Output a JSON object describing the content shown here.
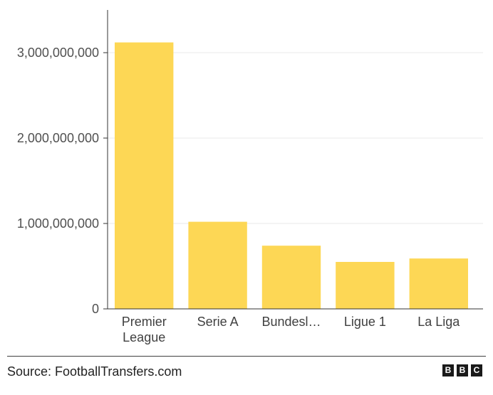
{
  "chart_data": {
    "type": "bar",
    "categories": [
      {
        "lines": [
          "Premier",
          "League"
        ]
      },
      {
        "lines": [
          "Serie A"
        ]
      },
      {
        "lines": [
          "Bundesl…"
        ]
      },
      {
        "lines": [
          "Ligue 1"
        ]
      },
      {
        "lines": [
          "La Liga"
        ]
      }
    ],
    "values": [
      3120000000,
      1020000000,
      740000000,
      550000000,
      590000000
    ],
    "ylim": [
      0,
      3500000000
    ],
    "yticks": [
      0,
      1000000000,
      2000000000,
      3000000000
    ],
    "ytick_labels": [
      "0",
      "1,000,000,000",
      "2,000,000,000",
      "3,000,000,000"
    ],
    "bar_color": "#fdd755",
    "grid": true,
    "title": "",
    "xlabel": "",
    "ylabel": ""
  },
  "footer": {
    "source": "Source: FootballTransfers.com",
    "logo": [
      "B",
      "B",
      "C"
    ]
  }
}
